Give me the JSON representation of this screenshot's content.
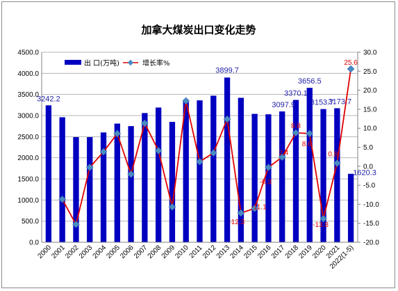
{
  "chart_data": {
    "type": "bar+line",
    "title": "加拿大煤炭出口变化走势",
    "categories": [
      "2000",
      "2001",
      "2002",
      "2003",
      "2004",
      "2005",
      "2006",
      "2007",
      "2008",
      "2009",
      "2010",
      "2011",
      "2012",
      "2013",
      "2014",
      "2015",
      "2016",
      "2017",
      "2018",
      "2019",
      "2020",
      "2021",
      "2022(1-5)"
    ],
    "series": [
      {
        "name": "出 口(万吨)",
        "type": "bar",
        "axis": "left",
        "color": "#0000c0",
        "values": [
          3242.2,
          2960,
          2490,
          2490,
          2600,
          2810,
          2750,
          3060,
          3190,
          2850,
          3340,
          3360,
          3470,
          3899.7,
          3420,
          3040,
          3030,
          3097.9,
          3370.1,
          3656.5,
          3153.7,
          3173.7,
          1620.3
        ]
      },
      {
        "name": "增长率%",
        "type": "line",
        "axis": "right",
        "color": "#e00000",
        "marker_color": "#4a8ac4",
        "values": [
          null,
          -8.7,
          -15.3,
          -0.3,
          3.8,
          8.6,
          -2.1,
          11.3,
          4.1,
          -10.7,
          17.2,
          1.2,
          3.5,
          12.4,
          -12.3,
          -11.1,
          -0.3,
          2.4,
          8.8,
          8.6,
          -13.8,
          0.8,
          25.6
        ]
      }
    ],
    "bar_labels": [
      {
        "index": 0,
        "text": "3242.2"
      },
      {
        "index": 13,
        "text": "3899.7"
      },
      {
        "index": 17,
        "text": "3097.9"
      },
      {
        "index": 18,
        "text": "3370.1"
      },
      {
        "index": 19,
        "text": "3656.5"
      },
      {
        "index": 20,
        "text": "3153.7"
      },
      {
        "index": 21,
        "text": "3173.7"
      },
      {
        "index": 22,
        "text": "1620.3"
      }
    ],
    "line_labels": [
      {
        "index": 14,
        "text": "-12.3"
      },
      {
        "index": 15,
        "text": "-11.1"
      },
      {
        "index": 16,
        "text": "-0.3"
      },
      {
        "index": 17,
        "text": "2.4"
      },
      {
        "index": 18,
        "text": "8.8"
      },
      {
        "index": 19,
        "text": "8.6"
      },
      {
        "index": 20,
        "text": "-13.8"
      },
      {
        "index": 21,
        "text": "0.8"
      },
      {
        "index": 22,
        "text": "25.6"
      }
    ],
    "y_left": {
      "min": 0,
      "max": 4500,
      "step": 500,
      "tick_labels": [
        "0.0",
        "500.0",
        "1000.0",
        "1500.0",
        "2000.0",
        "2500.0",
        "3000.0",
        "3500.0",
        "4000.0",
        "4500.0"
      ]
    },
    "y_right": {
      "min": -20,
      "max": 30,
      "step": 5,
      "tick_labels": [
        "-20.0",
        "-15.0",
        "-10.0",
        "-5.0",
        "0.0",
        "5.0",
        "10.0",
        "15.0",
        "20.0",
        "25.0",
        "30.0"
      ]
    },
    "grid": true,
    "legend_position": "top-left"
  }
}
